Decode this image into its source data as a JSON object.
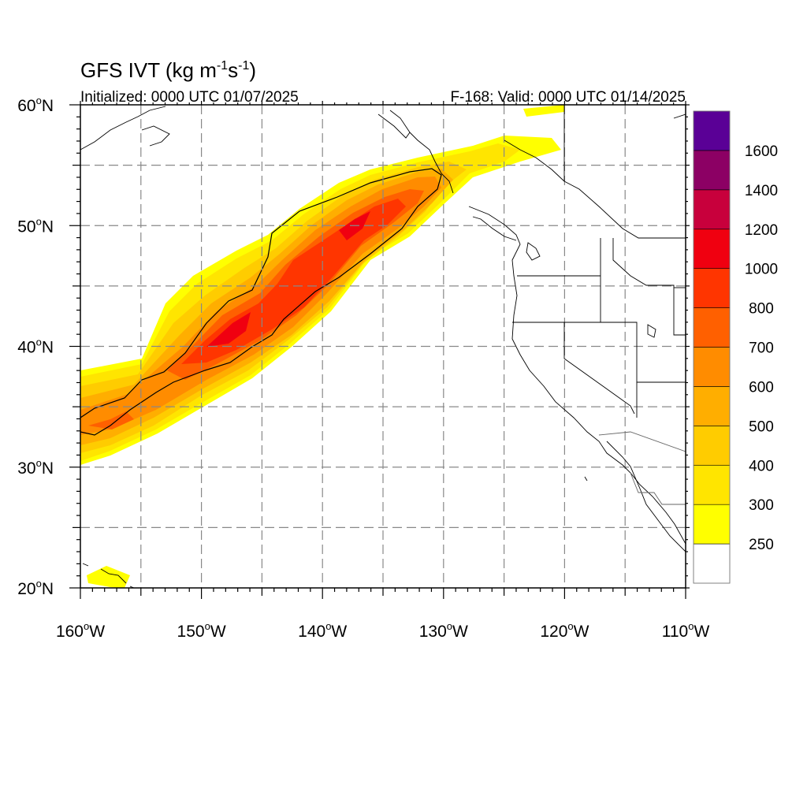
{
  "title": {
    "main": "GFS IVT (kg m",
    "sup1": "-1",
    "mid": "s",
    "sup2": "-1",
    "end": ")"
  },
  "subtitle": {
    "left": "Initialized: 0000 UTC 01/07/2025",
    "right": "F-168: Valid: 0000 UTC 01/14/2025"
  },
  "map": {
    "lon_range": [
      -160,
      -110
    ],
    "lat_range": [
      20,
      60
    ],
    "grid": "dashed, every 5 degrees",
    "lat_ticks": [
      {
        "value": 60,
        "label": "60",
        "hemi": "N"
      },
      {
        "value": 50,
        "label": "50",
        "hemi": "N"
      },
      {
        "value": 40,
        "label": "40",
        "hemi": "N"
      },
      {
        "value": 30,
        "label": "30",
        "hemi": "N"
      },
      {
        "value": 20,
        "label": "20",
        "hemi": "N"
      }
    ],
    "lon_ticks": [
      {
        "value": -160,
        "label": "160",
        "hemi": "W"
      },
      {
        "value": -150,
        "label": "150",
        "hemi": "W"
      },
      {
        "value": -140,
        "label": "140",
        "hemi": "W"
      },
      {
        "value": -130,
        "label": "130",
        "hemi": "W"
      },
      {
        "value": -120,
        "label": "120",
        "hemi": "W"
      },
      {
        "value": -110,
        "label": "110",
        "hemi": "W"
      }
    ]
  },
  "colorbar": {
    "levels": [
      {
        "label": "",
        "color": "#ffffff"
      },
      {
        "label": "250",
        "color": "#ffff00"
      },
      {
        "label": "300",
        "color": "#ffe500"
      },
      {
        "label": "400",
        "color": "#ffcc00"
      },
      {
        "label": "500",
        "color": "#ffae00"
      },
      {
        "label": "600",
        "color": "#ff8c00"
      },
      {
        "label": "700",
        "color": "#ff6000"
      },
      {
        "label": "800",
        "color": "#ff3500"
      },
      {
        "label": "1000",
        "color": "#f00010"
      },
      {
        "label": "1200",
        "color": "#c8003c"
      },
      {
        "label": "1400",
        "color": "#8c0064"
      },
      {
        "label": "1600",
        "color": "#5a0096"
      }
    ]
  }
}
